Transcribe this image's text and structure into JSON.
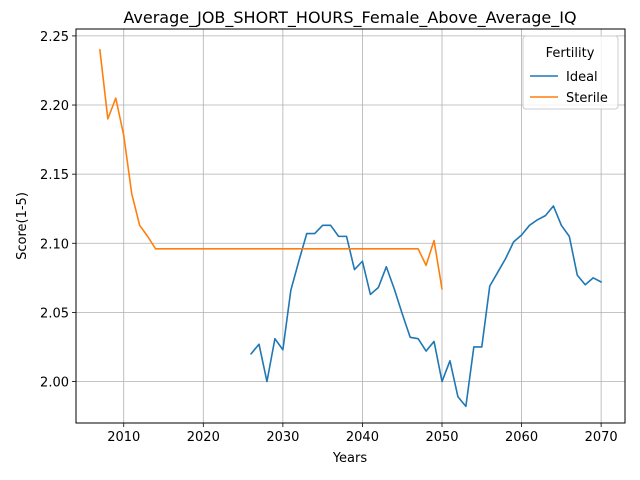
{
  "chart_data": {
    "type": "line",
    "title": "Average_JOB_SHORT_HOURS_Female_Above_Average_IQ",
    "xlabel": "Years",
    "ylabel": "Score(1-5)",
    "xlim": [
      2004,
      2073
    ],
    "ylim": [
      1.97,
      2.255
    ],
    "xticks": [
      2010,
      2020,
      2030,
      2040,
      2050,
      2060,
      2070
    ],
    "yticks": [
      2.0,
      2.05,
      2.1,
      2.15,
      2.2,
      2.25
    ],
    "ytick_labels": [
      "2.00",
      "2.05",
      "2.10",
      "2.15",
      "2.20",
      "2.25"
    ],
    "grid": true,
    "legend": {
      "title": "Fertility",
      "placement": "upper right"
    },
    "series": [
      {
        "name": "Ideal",
        "color": "#1f77b4",
        "x": [
          2026,
          2027,
          2028,
          2029,
          2030,
          2031,
          2032,
          2033,
          2034,
          2035,
          2036,
          2037,
          2038,
          2039,
          2040,
          2041,
          2042,
          2043,
          2044,
          2045,
          2046,
          2047,
          2048,
          2049,
          2050,
          2051,
          2052,
          2053,
          2054,
          2055,
          2056,
          2057,
          2058,
          2059,
          2060,
          2061,
          2062,
          2063,
          2064,
          2065,
          2066,
          2067,
          2068,
          2069,
          2070
        ],
        "y": [
          2.02,
          2.027,
          2.0,
          2.031,
          2.023,
          2.066,
          2.087,
          2.107,
          2.107,
          2.113,
          2.113,
          2.105,
          2.105,
          2.081,
          2.087,
          2.063,
          2.068,
          2.083,
          2.067,
          2.049,
          2.032,
          2.031,
          2.022,
          2.029,
          2.0,
          2.015,
          1.989,
          1.982,
          2.025,
          2.025,
          2.069,
          2.079,
          2.089,
          2.101,
          2.106,
          2.113,
          2.117,
          2.12,
          2.127,
          2.113,
          2.105,
          2.077,
          2.07,
          2.075,
          2.072
        ]
      },
      {
        "name": "Sterile",
        "color": "#ff7f0e",
        "x": [
          2007,
          2008,
          2009,
          2010,
          2011,
          2012,
          2013,
          2014,
          2015,
          2016,
          2017,
          2018,
          2019,
          2020,
          2021,
          2022,
          2023,
          2024,
          2025,
          2026,
          2027,
          2028,
          2029,
          2030,
          2031,
          2032,
          2033,
          2034,
          2035,
          2036,
          2037,
          2038,
          2039,
          2040,
          2041,
          2042,
          2043,
          2044,
          2045,
          2046,
          2047,
          2048,
          2049,
          2050
        ],
        "y": [
          2.24,
          2.19,
          2.205,
          2.178,
          2.136,
          2.113,
          2.105,
          2.096,
          2.096,
          2.096,
          2.096,
          2.096,
          2.096,
          2.096,
          2.096,
          2.096,
          2.096,
          2.096,
          2.096,
          2.096,
          2.096,
          2.096,
          2.096,
          2.096,
          2.096,
          2.096,
          2.096,
          2.096,
          2.096,
          2.096,
          2.096,
          2.096,
          2.096,
          2.096,
          2.096,
          2.096,
          2.096,
          2.096,
          2.096,
          2.096,
          2.096,
          2.084,
          2.102,
          2.067
        ]
      }
    ]
  }
}
